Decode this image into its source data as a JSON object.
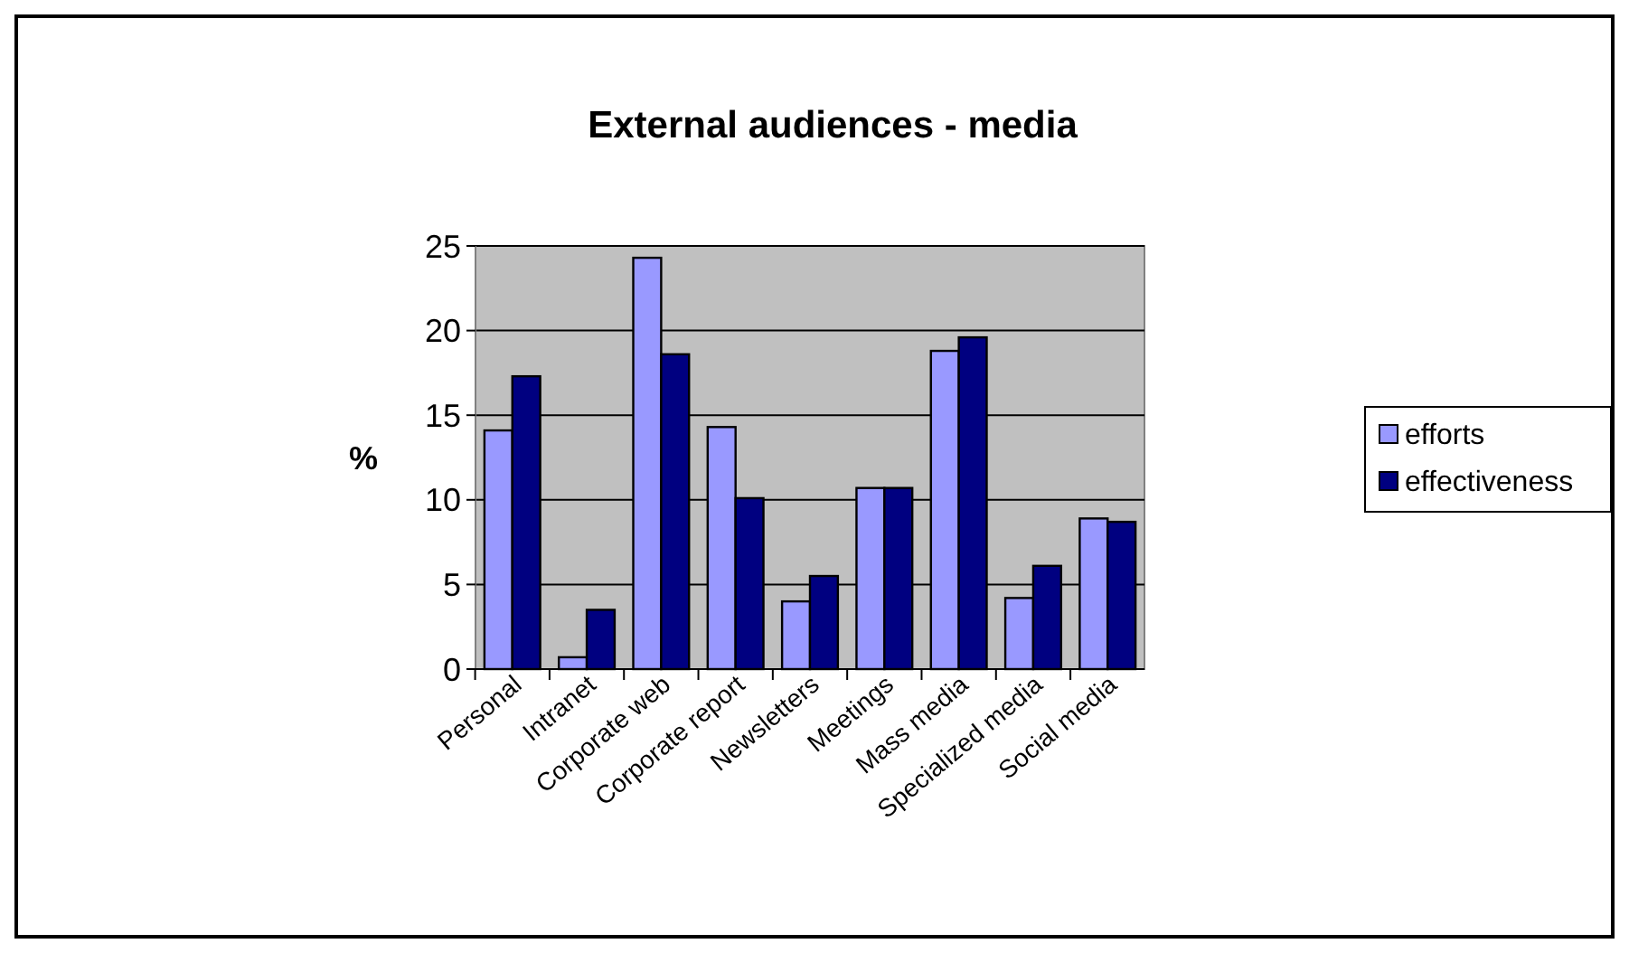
{
  "chart_data": {
    "type": "bar",
    "title": "External audiences - media",
    "ylabel": "%",
    "categories": [
      "Personal",
      "Intranet",
      "Corporate web",
      "Corporate report",
      "Newsletters",
      "Meetings",
      "Mass media",
      "Specialized media",
      "Social media"
    ],
    "series": [
      {
        "name": "efforts",
        "color": "#9999ff",
        "values": [
          14.1,
          0.7,
          24.3,
          14.3,
          4.0,
          10.7,
          18.8,
          4.2,
          8.9
        ]
      },
      {
        "name": "effectiveness",
        "color": "#000080",
        "values": [
          17.3,
          3.5,
          18.6,
          10.1,
          5.5,
          10.7,
          19.6,
          6.1,
          8.7
        ]
      }
    ],
    "ylim": [
      0,
      25
    ],
    "yticks": [
      0,
      5,
      10,
      15,
      20,
      25
    ],
    "grid": "y",
    "legend": "right"
  }
}
